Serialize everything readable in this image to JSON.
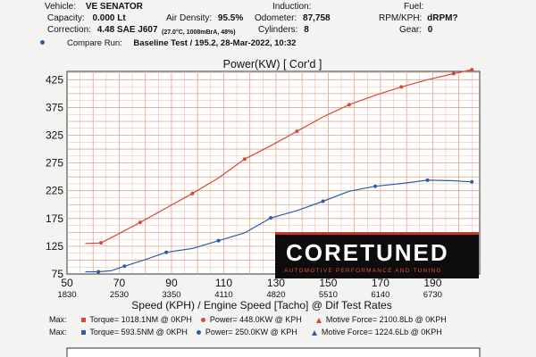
{
  "header": {
    "vehicle_label": "Vehicle:",
    "vehicle_value": "VE SENATOR",
    "capacity_label": "Capacity:",
    "capacity_value": "0.000 Lt",
    "correction_label": "Correction:",
    "correction_value": "4.48 SAE J607",
    "air_density_label": "Air Density:",
    "air_density_value": "95.5%",
    "air_detail": "(27.0°C, 1008mBrA, 48%)",
    "odometer_label": "Odometer:",
    "odometer_value": "87,758",
    "cylinders_label": "Cylinders:",
    "cylinders_value": "8",
    "induction_label": "Induction:",
    "fuel_label": "Fuel:",
    "rpm_label": "RPM/KPH:",
    "rpm_value": "dRPM?",
    "gear_label": "Gear:",
    "gear_value": "0",
    "compare_label": "Compare Run:",
    "compare_value": "Baseline Test / 195.2,  28-Mar-2022,   10:32"
  },
  "logo": {
    "main": "CORETUNED",
    "tagline": "AUTOMOTIVE PERFORMANCE AND TUNING"
  },
  "legend": {
    "row1": {
      "max": "Max:",
      "torque": "Torque= 1018.1NM @ 0KPH",
      "power": "Power= 448.0KW @ KPH",
      "force": "Motive Force= 2100.8Lb @ 0KPH"
    },
    "row2": {
      "max": "Max:",
      "torque": "Torque= 593.5NM @ 0KPH",
      "power": "Power= 250.0KW @ KPH",
      "force": "Motive Force= 1224.6Lb @ 0KPH"
    }
  },
  "colors": {
    "run_current": "#d34a3a",
    "run_compare": "#2a5fa8",
    "grid": "#e2a58a"
  },
  "chart_data": {
    "type": "line",
    "title": "Power(KW)     [ Cor'd ]",
    "xlabel": "Speed (KPH) / Engine Speed [Tacho] @ Dif Test Rates",
    "x_ticks": [
      50,
      70,
      90,
      110,
      130,
      150,
      170,
      190
    ],
    "rpm_ticks": [
      "1830",
      "2530",
      "3350",
      "4110",
      "4820",
      "5510",
      "6140",
      "6730"
    ],
    "y_ticks": [
      75,
      125,
      175,
      225,
      275,
      325,
      375,
      425
    ],
    "xlim": [
      50,
      208
    ],
    "ylim": [
      75,
      440
    ],
    "grid": true,
    "series": [
      {
        "color": "#d34a3a",
        "x": [
          57,
          63,
          68,
          78,
          88,
          98,
          108,
          118,
          128,
          138,
          148,
          158,
          168,
          178,
          188,
          198,
          205
        ],
        "y": [
          130,
          131,
          143,
          168,
          194,
          220,
          248,
          282,
          306,
          332,
          358,
          380,
          397,
          412,
          425,
          436,
          443
        ]
      },
      {
        "color": "#2a5fa8",
        "x": [
          57,
          62,
          67,
          72,
          80,
          88,
          98,
          108,
          118,
          128,
          138,
          148,
          158,
          168,
          178,
          188,
          198,
          205
        ],
        "y": [
          79,
          79,
          81,
          89,
          101,
          114,
          121,
          135,
          149,
          176,
          189,
          206,
          224,
          233,
          238,
          244,
          243,
          241
        ]
      }
    ]
  }
}
